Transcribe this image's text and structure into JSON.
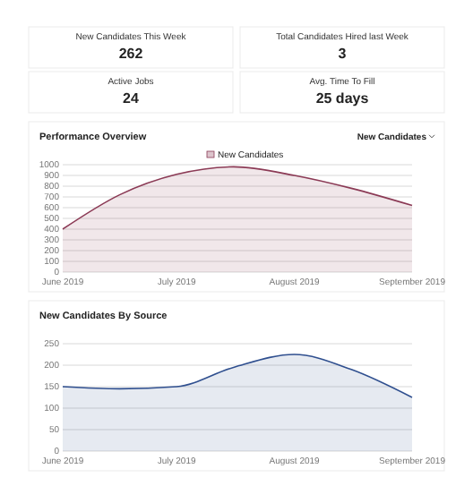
{
  "chart_data": [
    {
      "type": "other",
      "title": "New Candidates This Week",
      "annotations": [
        "262"
      ]
    },
    {
      "type": "other",
      "title": "Total Candidates Hired last Week",
      "annotations": [
        "3"
      ]
    },
    {
      "type": "other",
      "title": "Active Jobs",
      "annotations": [
        "24"
      ]
    },
    {
      "type": "other",
      "title": "Avg. Time To Fill",
      "annotations": [
        "25 days"
      ]
    },
    {
      "type": "area",
      "title": "Performance Overview",
      "annotations": [
        "New Candidates"
      ],
      "legend": "top",
      "grid": "y",
      "xlim": [
        "2019-06-01",
        "2019-09-01"
      ],
      "xticks": [
        {
          "value": "2019-06-01",
          "label": "June 2019"
        },
        {
          "value": "2019-07-01",
          "label": "July 2019"
        },
        {
          "value": "2019-08-01",
          "label": "August 2019"
        },
        {
          "value": "2019-09-01",
          "label": "September 2019"
        }
      ],
      "ylim": [
        0,
        1000
      ],
      "yticks": [
        0,
        100,
        200,
        300,
        400,
        500,
        600,
        700,
        800,
        900,
        1000
      ],
      "x": [
        "2019-06-01",
        "2019-06-16",
        "2019-07-01",
        "2019-07-16",
        "2019-08-01",
        "2019-08-16",
        "2019-09-01"
      ],
      "series": [
        {
          "name": "New Candidates",
          "color": "#8b3a55",
          "values": [
            400,
            720,
            910,
            980,
            900,
            780,
            620
          ]
        }
      ]
    },
    {
      "type": "area",
      "title": "New Candidates By Source",
      "grid": "y",
      "xlim": [
        "2019-06-01",
        "2019-09-01"
      ],
      "xticks": [
        {
          "value": "2019-06-01",
          "label": "June 2019"
        },
        {
          "value": "2019-07-01",
          "label": "July 2019"
        },
        {
          "value": "2019-08-01",
          "label": "August 2019"
        },
        {
          "value": "2019-09-01",
          "label": "September 2019"
        }
      ],
      "ylim": [
        0,
        250
      ],
      "yticks": [
        0,
        50,
        100,
        150,
        200,
        250
      ],
      "x": [
        "2019-06-01",
        "2019-06-16",
        "2019-07-01",
        "2019-07-16",
        "2019-08-01",
        "2019-08-16",
        "2019-09-01"
      ],
      "series": [
        {
          "color": "#2f4f8f",
          "values": [
            150,
            145,
            150,
            195,
            225,
            190,
            125
          ]
        }
      ]
    }
  ]
}
